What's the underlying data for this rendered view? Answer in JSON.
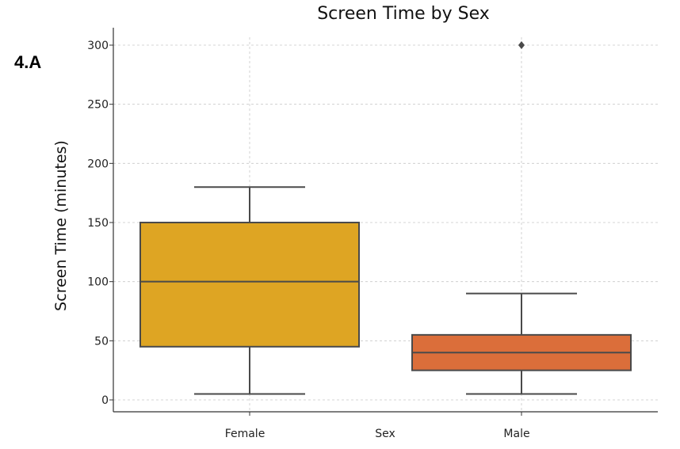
{
  "figure_label": "4.A",
  "chart_data": {
    "type": "box",
    "title": "Screen Time by Sex",
    "xlabel": "Sex",
    "ylabel": "Screen Time (minutes)",
    "ylim": [
      -10,
      315
    ],
    "yticks": [
      0,
      50,
      100,
      150,
      200,
      250,
      300
    ],
    "grid": true,
    "categories": [
      "Female",
      "Male"
    ],
    "boxes": [
      {
        "category": "Female",
        "whisker_low": 5,
        "q1": 45,
        "median": 100,
        "q3": 150,
        "whisker_high": 180,
        "outliers": [],
        "color": "#DEA523"
      },
      {
        "category": "Male",
        "whisker_low": 5,
        "q1": 25,
        "median": 40,
        "q3": 55,
        "whisker_high": 90,
        "outliers": [
          300
        ],
        "color": "#DB6E3A"
      }
    ]
  }
}
